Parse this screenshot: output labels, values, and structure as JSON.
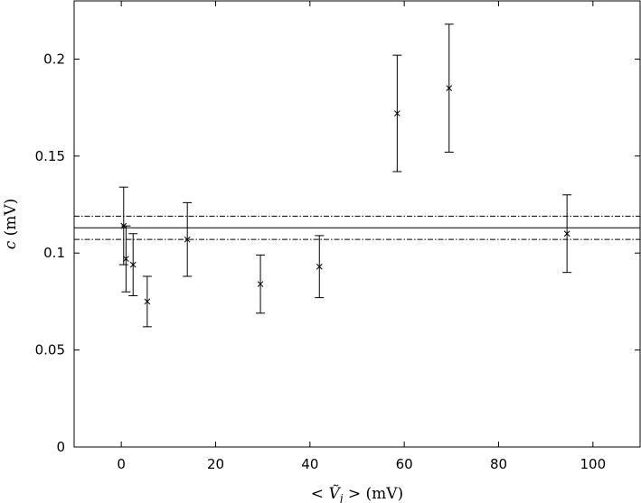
{
  "chart_data": {
    "type": "scatter",
    "xlabel": "< Ṽj > (mV)",
    "ylabel": "c (mV)",
    "xlabel_parts": {
      "open": "< ",
      "var": "Ṽ",
      "sub": "j",
      "close": " > (mV)"
    },
    "ylabel_parts": {
      "var": "c",
      "unit": " (mV)"
    },
    "xlim": [
      -10,
      110
    ],
    "ylim": [
      0,
      0.23
    ],
    "xticks": [
      0,
      20,
      40,
      60,
      80,
      100
    ],
    "yticks": [
      0,
      0.05,
      0.1,
      0.15,
      0.2
    ],
    "grid": false,
    "marker": "x",
    "points": [
      {
        "x": 0.5,
        "y": 0.114,
        "err_low": 0.094,
        "err_high": 0.134
      },
      {
        "x": 1.0,
        "y": 0.097,
        "err_low": 0.08,
        "err_high": 0.114
      },
      {
        "x": 2.5,
        "y": 0.094,
        "err_low": 0.078,
        "err_high": 0.11
      },
      {
        "x": 5.5,
        "y": 0.075,
        "err_low": 0.062,
        "err_high": 0.088
      },
      {
        "x": 14.0,
        "y": 0.107,
        "err_low": 0.088,
        "err_high": 0.126
      },
      {
        "x": 29.5,
        "y": 0.084,
        "err_low": 0.069,
        "err_high": 0.099
      },
      {
        "x": 42.0,
        "y": 0.093,
        "err_low": 0.077,
        "err_high": 0.109
      },
      {
        "x": 58.5,
        "y": 0.172,
        "err_low": 0.142,
        "err_high": 0.202
      },
      {
        "x": 69.5,
        "y": 0.185,
        "err_low": 0.152,
        "err_high": 0.218
      },
      {
        "x": 94.5,
        "y": 0.11,
        "err_low": 0.09,
        "err_high": 0.13
      }
    ],
    "hlines": [
      {
        "y": 0.119,
        "style": "dashdot"
      },
      {
        "y": 0.113,
        "style": "solid"
      },
      {
        "y": 0.107,
        "style": "dashdot"
      }
    ]
  }
}
